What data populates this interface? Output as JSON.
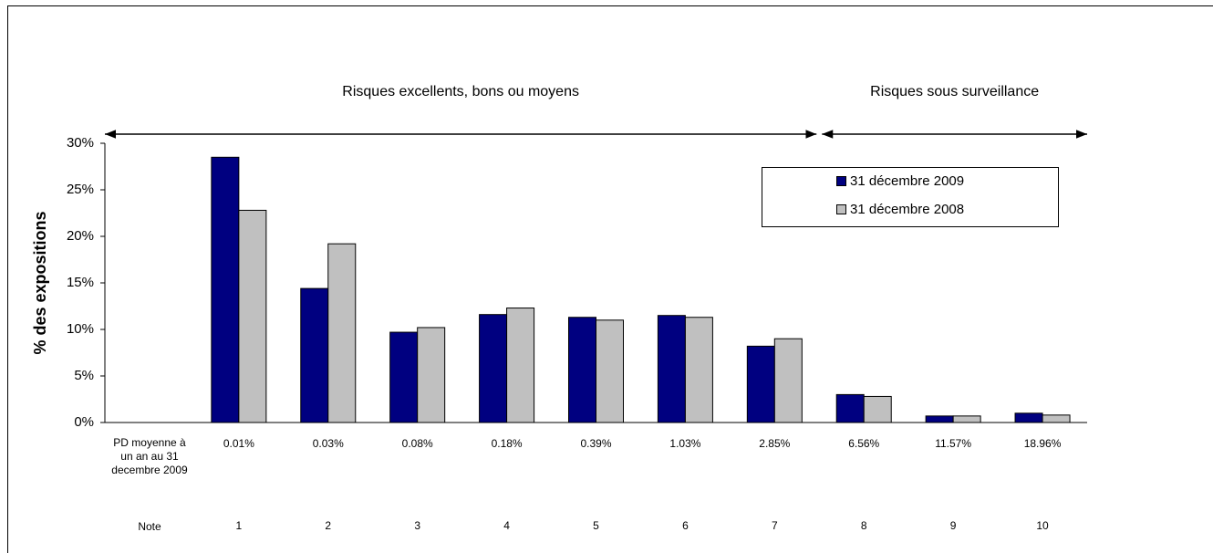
{
  "chart_data": {
    "type": "bar",
    "y_label": "% des expositions",
    "annotations": [
      "Risques excellents, bons ou moyens",
      "Risques sous surveillance"
    ],
    "row_labels": [
      "PD moyenne à un an au 31 decembre 2009",
      "Note"
    ],
    "pd_labels": [
      "0.01%",
      "0.03%",
      "0.08%",
      "0.18%",
      "0.39%",
      "1.03%",
      "2.85%",
      "6.56%",
      "11.57%",
      "18.96%"
    ],
    "categories": [
      "1",
      "2",
      "3",
      "4",
      "5",
      "6",
      "7",
      "8",
      "9",
      "10"
    ],
    "series": [
      {
        "name": "31 décembre 2009",
        "color": "#000080",
        "values": [
          28.5,
          14.4,
          9.7,
          11.6,
          11.3,
          11.5,
          8.2,
          3.0,
          0.7,
          1.0
        ]
      },
      {
        "name": "31 décembre 2008",
        "color": "#c0c0c0",
        "values": [
          22.8,
          19.2,
          10.2,
          12.3,
          11.0,
          11.3,
          9.0,
          2.8,
          0.7,
          0.8
        ]
      }
    ],
    "ylim": [
      0,
      30
    ],
    "yticks": [
      {
        "value": 0,
        "label": "0%"
      },
      {
        "value": 5,
        "label": "5%"
      },
      {
        "value": 10,
        "label": "10%"
      },
      {
        "value": 15,
        "label": "15%"
      },
      {
        "value": 20,
        "label": "20%"
      },
      {
        "value": 25,
        "label": "25%"
      },
      {
        "value": 30,
        "label": "30%"
      }
    ],
    "grid": false,
    "legend": "upper right"
  }
}
